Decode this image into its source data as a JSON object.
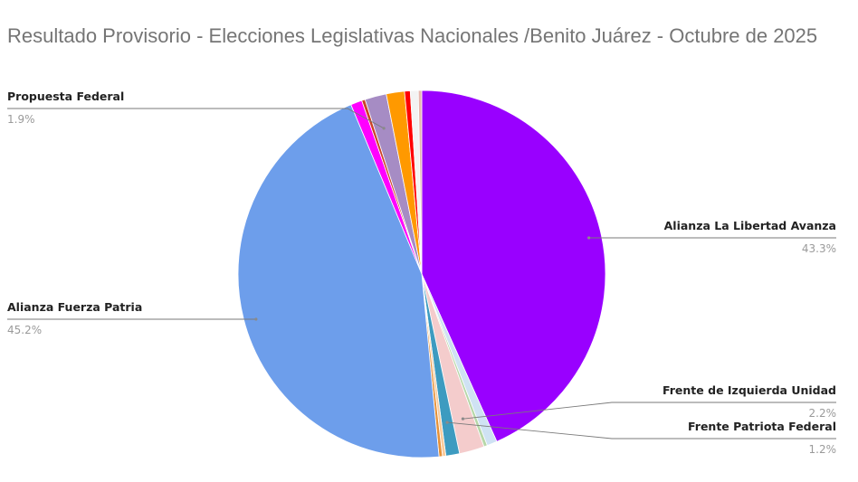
{
  "chart_data": {
    "type": "pie",
    "title": "Resultado Provisorio - Elecciones Legislativas Nacionales /Benito Juárez - Octubre de 2025",
    "slices": [
      {
        "label": "Alianza La Libertad Avanza",
        "value": 43.3,
        "display": "43.3%",
        "color": "#9900ff",
        "show_label": true
      },
      {
        "label": "",
        "value": 0.9,
        "color": "#cfe2f3",
        "show_label": false
      },
      {
        "label": "",
        "value": 0.3,
        "color": "#b6d7a8",
        "show_label": false
      },
      {
        "label": "Frente de Izquierda Unidad",
        "value": 2.2,
        "display": "2.2%",
        "color": "#f4cccc",
        "show_label": true
      },
      {
        "label": "Frente Patriota Federal",
        "value": 1.2,
        "display": "1.2%",
        "color": "#3d9bc0",
        "show_label": true
      },
      {
        "label": "",
        "value": 0.3,
        "color": "#f9cb9c",
        "show_label": false
      },
      {
        "label": "",
        "value": 0.3,
        "color": "#e69138",
        "show_label": false
      },
      {
        "label": "Alianza Fuerza Patria",
        "value": 45.2,
        "display": "45.2%",
        "color": "#6d9eeb",
        "show_label": true
      },
      {
        "label": "",
        "value": 1.0,
        "color": "#ff00ff",
        "show_label": false
      },
      {
        "label": "",
        "value": 0.3,
        "color": "#cc4125",
        "show_label": false
      },
      {
        "label": "Propuesta Federal",
        "value": 1.9,
        "display": "1.9%",
        "color": "#a68cc4",
        "show_label": true
      },
      {
        "label": "",
        "value": 1.6,
        "color": "#ff9900",
        "show_label": false
      },
      {
        "label": "",
        "value": 0.5,
        "color": "#ff0000",
        "show_label": false
      },
      {
        "label": "",
        "value": 0.7,
        "color": "#f3f3f3",
        "show_label": false
      },
      {
        "label": "",
        "value": 0.3,
        "color": "#e6b8af",
        "show_label": false
      }
    ],
    "legend": "none",
    "start_angle": "12 o'clock, clockwise"
  }
}
